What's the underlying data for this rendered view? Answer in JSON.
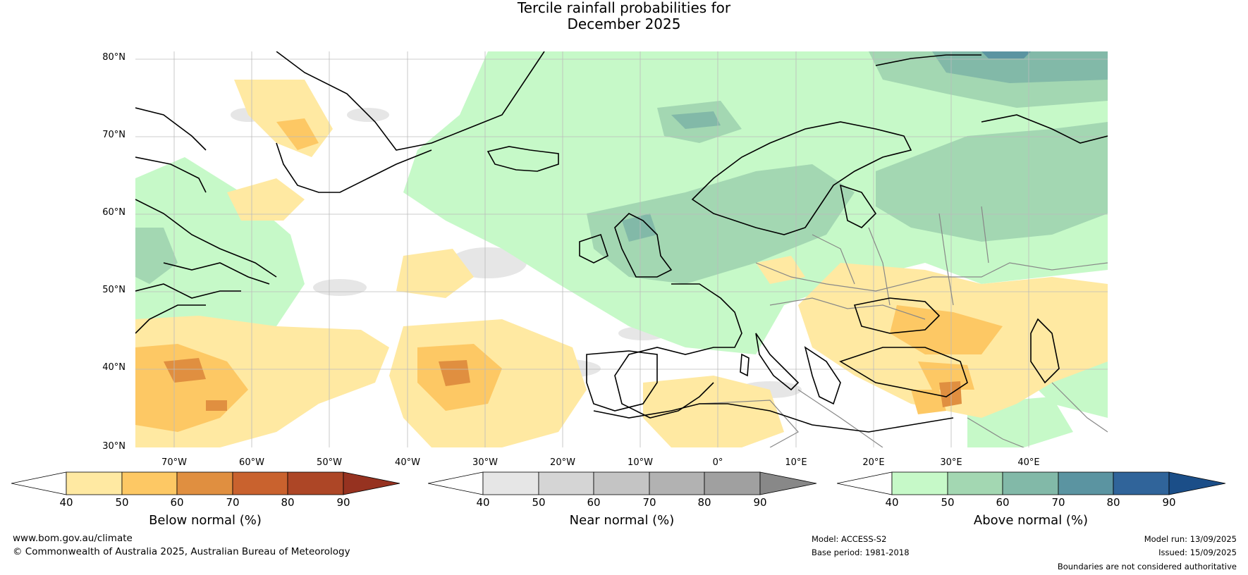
{
  "title": {
    "line1": "Tercile rainfall probabilities for",
    "line2": "December 2025"
  },
  "map": {
    "lat_labels": [
      "80°N",
      "70°N",
      "60°N",
      "50°N",
      "40°N",
      "30°N"
    ],
    "lon_labels": [
      "70°W",
      "60°W",
      "50°W",
      "40°W",
      "30°W",
      "20°W",
      "10°W",
      "0°",
      "10°E",
      "20°E",
      "30°E",
      "40°E"
    ],
    "colors": {
      "ocean_land_background": "#ffffff",
      "coastline": "#000000",
      "borders": "#888888",
      "gridlines": "#bbbbbb"
    }
  },
  "colorbars": [
    {
      "label": "Below normal (%)",
      "ticks": [
        "40",
        "50",
        "60",
        "70",
        "80",
        "90"
      ],
      "colors": [
        "#ffffff",
        "#ffe9a2",
        "#fdc864",
        "#e08f40",
        "#c9622e",
        "#ad4626",
        "#963220"
      ]
    },
    {
      "label": "Near normal (%)",
      "ticks": [
        "40",
        "50",
        "60",
        "70",
        "80",
        "90"
      ],
      "colors": [
        "#ffffff",
        "#e6e6e6",
        "#d5d5d5",
        "#c4c4c4",
        "#b2b2b2",
        "#a0a0a0",
        "#888888"
      ]
    },
    {
      "label": "Above normal (%)",
      "ticks": [
        "40",
        "50",
        "60",
        "70",
        "80",
        "90"
      ],
      "colors": [
        "#ffffff",
        "#c6f9c8",
        "#a3d7b2",
        "#82b9a8",
        "#5b94a1",
        "#30649a",
        "#1b4e88"
      ]
    }
  ],
  "footer": {
    "website": "www.bom.gov.au/climate",
    "copyright": "© Commonwealth of Australia 2025, Australian Bureau of Meteorology",
    "model": "Model: ACCESS-S2",
    "base_period": "Base period: 1981-2018",
    "model_run": "Model run: 13/09/2025",
    "issued": "Issued: 15/09/2025",
    "disclaimer": "Boundaries are not considered authoritative"
  }
}
